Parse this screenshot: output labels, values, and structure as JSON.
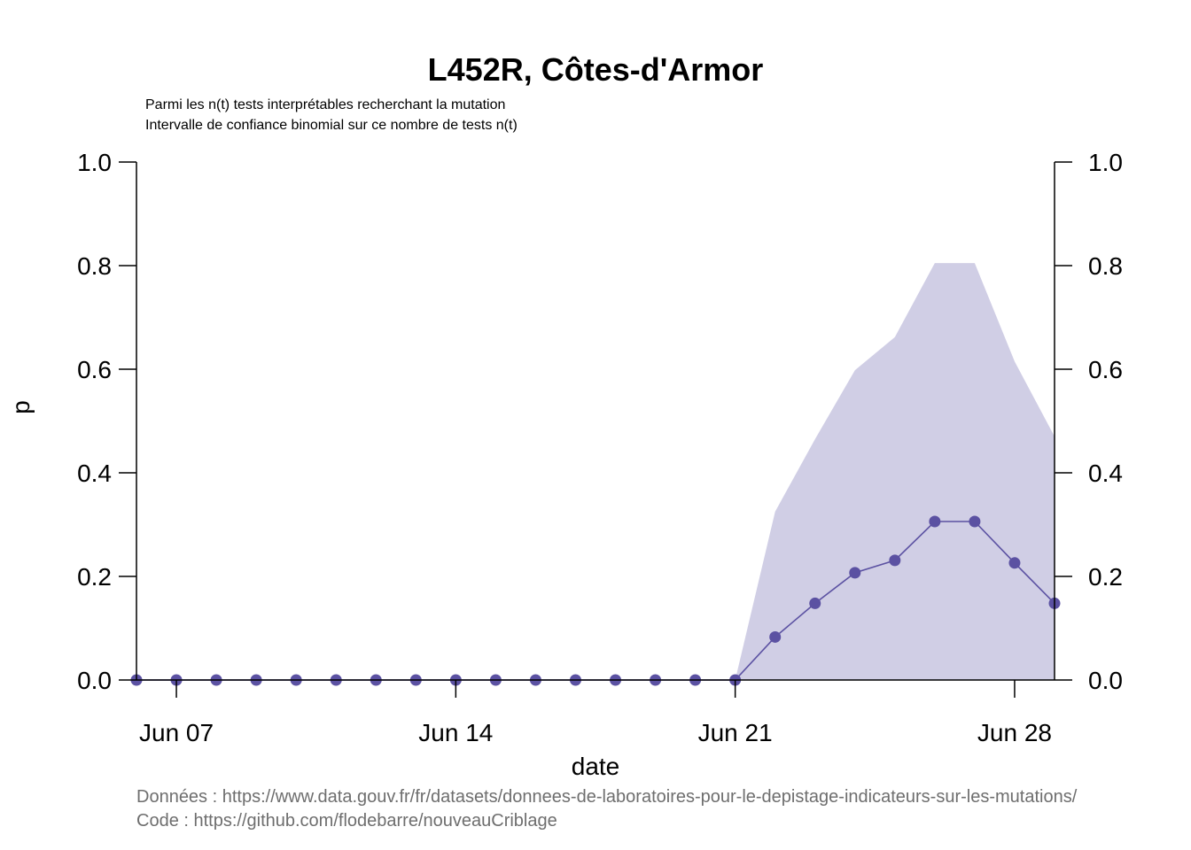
{
  "chart_data": {
    "type": "line",
    "title": "L452R, Côtes-d'Armor",
    "subtitle_lines": [
      "Parmi les n(t) tests interprétables recherchant la mutation",
      "Intervalle de confiance binomial sur ce nombre de tests n(t)"
    ],
    "xlabel": "date",
    "ylabel": "p",
    "ylim": [
      0,
      1
    ],
    "y_ticks": [
      "0.0",
      "0.2",
      "0.4",
      "0.6",
      "0.8",
      "1.0"
    ],
    "x_ticks": [
      {
        "date": "2021-06-07",
        "label": "Jun 07"
      },
      {
        "date": "2021-06-14",
        "label": "Jun 14"
      },
      {
        "date": "2021-06-21",
        "label": "Jun 21"
      },
      {
        "date": "2021-06-28",
        "label": "Jun 28"
      }
    ],
    "xlim": [
      "2021-06-06",
      "2021-06-29"
    ],
    "grid": false,
    "series": [
      {
        "x": [
          "2021-06-06",
          "2021-06-07",
          "2021-06-08",
          "2021-06-09",
          "2021-06-10",
          "2021-06-11",
          "2021-06-12",
          "2021-06-13",
          "2021-06-14",
          "2021-06-15",
          "2021-06-16",
          "2021-06-17",
          "2021-06-18",
          "2021-06-19",
          "2021-06-20",
          "2021-06-21",
          "2021-06-22",
          "2021-06-23",
          "2021-06-24",
          "2021-06-25",
          "2021-06-26",
          "2021-06-27",
          "2021-06-28",
          "2021-06-29"
        ],
        "values": [
          0,
          0,
          0,
          0,
          0,
          0,
          0,
          0,
          0,
          0,
          0,
          0,
          0,
          0,
          0,
          0,
          0.083,
          0.148,
          0.207,
          0.231,
          0.306,
          0.306,
          0.226,
          0.148
        ],
        "ci_lower": [
          0,
          0,
          0,
          0,
          0,
          0,
          0,
          0,
          0,
          0,
          0,
          0,
          0,
          0,
          0,
          0,
          0,
          0,
          0,
          0,
          0,
          0,
          0,
          0
        ],
        "ci_upper": [
          0,
          0,
          0,
          0,
          0,
          0,
          0,
          0,
          0,
          0,
          0,
          0,
          0,
          0,
          0,
          0,
          0.325,
          0.465,
          0.598,
          0.662,
          0.805,
          0.805,
          0.615,
          0.47
        ]
      }
    ],
    "colors": {
      "line": "#5b51a2",
      "band": "#d0cee5"
    },
    "source_lines": [
      "Données : https://www.data.gouv.fr/fr/datasets/donnees-de-laboratoires-pour-le-depistage-indicateurs-sur-les-mutations/",
      "Code : https://github.com/flodebarre/nouveauCriblage"
    ]
  }
}
